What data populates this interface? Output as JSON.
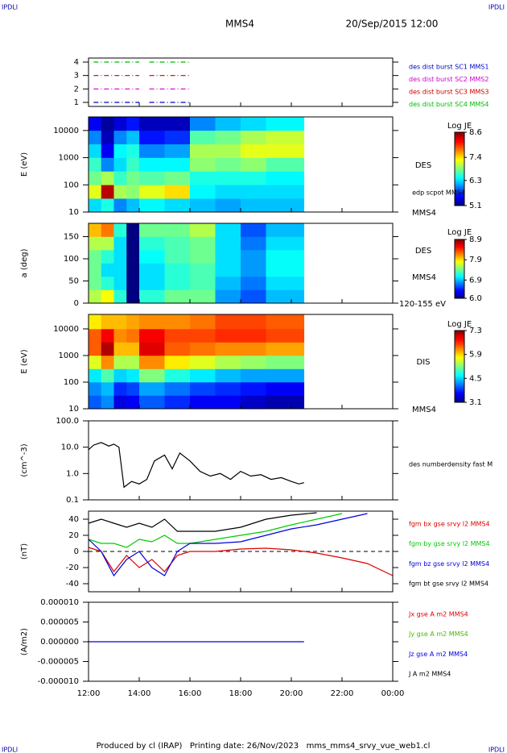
{
  "header": {
    "corner_left": "IPDLI",
    "corner_right": "IPDLI",
    "spacecraft": "MMS4",
    "date": "20/Sep/2015 12:00"
  },
  "footer": {
    "text": "Produced by cl (IRAP)   Printing date: 26/Nov/2023   mms_mms4_srvy_vue_web1.cl",
    "corner_left": "IPDLI",
    "corner_right": "IPDLI"
  },
  "time_axis": {
    "xlim": [
      12,
      24
    ],
    "xticks": [
      {
        "value": 12,
        "label": "12:00"
      },
      {
        "value": 14,
        "label": "14:00"
      },
      {
        "value": 16,
        "label": "16:00"
      },
      {
        "value": 18,
        "label": "18:00"
      },
      {
        "value": 20,
        "label": "20:00"
      },
      {
        "value": 22,
        "label": "22:00"
      },
      {
        "value": 24,
        "label": "00:00"
      }
    ]
  },
  "chart_data": [
    {
      "type": "line",
      "ylim": [
        0.7,
        4.3
      ],
      "yticks": [
        1,
        2,
        3,
        4
      ],
      "dash": true,
      "x": [
        12.2,
        14.0,
        14.2,
        14.4,
        16.0
      ],
      "series": [
        {
          "name": "des dist burst SC1 MMS1",
          "color": "#0000cc",
          "values": [
            1,
            1,
            null,
            1,
            1
          ]
        },
        {
          "name": "des dist burst SC2 MMS2",
          "color": "#cc00cc",
          "values": [
            2,
            2,
            null,
            2,
            2
          ]
        },
        {
          "name": "des dist burst SC3 MMS3",
          "color": "#cc0000",
          "values": [
            3,
            3,
            null,
            3,
            3
          ]
        },
        {
          "name": "des dist burst SC4 MMS4",
          "color": "#00bb00",
          "values": [
            4,
            4,
            null,
            4,
            4
          ]
        }
      ]
    },
    {
      "type": "heatmap",
      "ylabel": "E (eV)",
      "log": true,
      "ylim": [
        10,
        31623
      ],
      "yticks": [
        10,
        100,
        1000,
        10000
      ],
      "x_edges": [
        12,
        12.5,
        13,
        13.5,
        14,
        15,
        16,
        17,
        18,
        19,
        20.5
      ],
      "y_edges": [
        10,
        31.6,
        100,
        316,
        1000,
        3162,
        10000,
        31623
      ],
      "z": [
        [
          6.3,
          7.2,
          6.8,
          6.6,
          6.3,
          6.0,
          5.5
        ],
        [
          6.5,
          8.4,
          7.0,
          6.0,
          5.5,
          5.3,
          5.2
        ],
        [
          6.0,
          7.0,
          6.6,
          6.3,
          6.4,
          6.0,
          5.4
        ],
        [
          6.2,
          6.9,
          6.8,
          6.6,
          6.5,
          6.2,
          5.6
        ],
        [
          6.4,
          7.2,
          6.7,
          6.4,
          6.0,
          5.6,
          5.3
        ],
        [
          6.3,
          7.4,
          6.8,
          6.4,
          6.1,
          5.7,
          5.3
        ],
        [
          6.2,
          6.4,
          6.5,
          6.9,
          7.0,
          6.7,
          6.0
        ],
        [
          6.1,
          6.3,
          6.5,
          6.8,
          7.0,
          6.8,
          6.2
        ],
        [
          6.2,
          6.3,
          6.5,
          6.9,
          7.2,
          7.0,
          6.3
        ],
        [
          6.2,
          6.3,
          6.4,
          6.7,
          7.2,
          7.1,
          6.4
        ]
      ],
      "clim": [
        5.1,
        8.6
      ],
      "colorbar_label": "Log JE",
      "colorbar_ticks": [
        8.6,
        7.4,
        6.3,
        5.1
      ],
      "annotations": [
        "DES",
        "edp scpot MMS4",
        "MMS4"
      ]
    },
    {
      "type": "heatmap",
      "ylabel": "a (deg)",
      "log": false,
      "ylim": [
        0,
        180
      ],
      "yticks": [
        0,
        50,
        100,
        150
      ],
      "x_edges": [
        12,
        12.5,
        13,
        13.5,
        14,
        15,
        16,
        17,
        18,
        19,
        20.5
      ],
      "y_edges": [
        0,
        30,
        60,
        90,
        120,
        150,
        180
      ],
      "z": [
        [
          7.6,
          7.4,
          7.4,
          7.4,
          7.6,
          8.0
        ],
        [
          7.8,
          7.2,
          7.0,
          7.2,
          7.6,
          8.2
        ],
        [
          7.2,
          7.0,
          7.0,
          7.0,
          7.0,
          7.2
        ],
        [
          6.0,
          6.0,
          6.0,
          6.0,
          6.0,
          6.0
        ],
        [
          7.2,
          7.0,
          7.0,
          7.1,
          7.2,
          7.4
        ],
        [
          7.4,
          7.2,
          7.2,
          7.3,
          7.3,
          7.4
        ],
        [
          7.4,
          7.3,
          7.3,
          7.4,
          7.4,
          7.6
        ],
        [
          6.8,
          6.9,
          7.0,
          7.0,
          7.0,
          7.0
        ],
        [
          6.6,
          6.7,
          6.8,
          6.8,
          6.7,
          6.6
        ],
        [
          6.9,
          7.0,
          7.1,
          7.1,
          7.0,
          6.9
        ]
      ],
      "clim": [
        6.0,
        8.9
      ],
      "colorbar_label": "Log JE",
      "colorbar_ticks": [
        8.9,
        7.9,
        6.9,
        {
          "value": 6.0,
          "label": "6.0"
        }
      ],
      "annotations": [
        "DES",
        "MMS4",
        "120-155 eV"
      ]
    },
    {
      "type": "heatmap",
      "ylabel": "E (eV)",
      "log": true,
      "ylim": [
        10,
        35000
      ],
      "yticks": [
        10,
        100,
        1000,
        10000
      ],
      "x_edges": [
        12,
        12.5,
        13,
        13.5,
        14,
        15,
        16,
        17,
        18,
        19,
        20.5
      ],
      "y_edges": [
        10,
        31.6,
        100,
        316,
        1000,
        3162,
        10000,
        35000
      ],
      "z": [
        [
          4.0,
          4.2,
          4.6,
          5.6,
          6.4,
          6.4,
          5.8
        ],
        [
          4.2,
          4.4,
          5.0,
          6.2,
          7.1,
          6.8,
          6.0
        ],
        [
          3.5,
          3.8,
          4.5,
          5.4,
          6.0,
          6.2,
          6.0
        ],
        [
          3.6,
          3.9,
          4.6,
          5.4,
          6.0,
          6.3,
          6.1
        ],
        [
          4.0,
          4.3,
          5.2,
          6.2,
          6.9,
          6.8,
          6.2
        ],
        [
          3.8,
          4.1,
          4.8,
          5.8,
          6.4,
          6.5,
          6.2
        ],
        [
          3.6,
          3.9,
          4.6,
          5.6,
          6.3,
          6.5,
          6.3
        ],
        [
          3.6,
          3.8,
          4.4,
          5.4,
          6.2,
          6.6,
          6.5
        ],
        [
          3.4,
          3.7,
          4.3,
          5.3,
          6.2,
          6.6,
          6.5
        ],
        [
          3.3,
          3.6,
          4.3,
          5.2,
          6.1,
          6.5,
          6.4
        ]
      ],
      "clim": [
        3.1,
        7.3
      ],
      "colorbar_label": "Log JE",
      "colorbar_ticks": [
        7.3,
        5.9,
        4.5,
        3.1
      ],
      "annotations": [
        "DIS",
        "MMS4"
      ]
    },
    {
      "type": "line",
      "ylabel": "(cm^-3)",
      "log": true,
      "ylim": [
        0.1,
        100
      ],
      "yticks": [
        {
          "value": 100,
          "label": "100.0"
        },
        {
          "value": 10,
          "label": "10.0"
        },
        {
          "value": 1,
          "label": "1.0"
        },
        0.1
      ],
      "x": [
        12,
        12.2,
        12.5,
        12.8,
        13,
        13.2,
        13.4,
        13.7,
        14,
        14.3,
        14.6,
        15,
        15.3,
        15.6,
        16,
        16.4,
        16.8,
        17.2,
        17.6,
        18,
        18.4,
        18.8,
        19.2,
        19.6,
        20,
        20.3,
        20.5
      ],
      "series": [
        {
          "name": "des numberdensity fast M",
          "color": "#000000",
          "values": [
            8,
            12,
            15,
            11,
            13,
            10,
            0.3,
            0.5,
            0.4,
            0.6,
            3,
            5,
            1.5,
            6,
            3,
            1.2,
            0.8,
            1.0,
            0.6,
            1.2,
            0.8,
            0.9,
            0.6,
            0.7,
            0.5,
            0.4,
            0.45
          ]
        }
      ]
    },
    {
      "type": "line",
      "ylabel": "(nT)",
      "log": false,
      "ylim": [
        -50,
        50
      ],
      "yticks": [
        -40,
        -20,
        0,
        20,
        40
      ],
      "zero_line": true,
      "x": [
        12,
        12.5,
        13,
        13.5,
        14,
        14.5,
        15,
        15.5,
        16,
        17,
        18,
        19,
        20,
        21,
        22,
        23,
        24
      ],
      "series": [
        {
          "name": "fgm bx gse srvy l2 MMS4",
          "color": "#dd0000",
          "values": [
            5,
            0,
            -25,
            -5,
            -20,
            -10,
            -25,
            -5,
            0,
            0,
            3,
            4,
            2,
            -2,
            -8,
            -15,
            -30
          ]
        },
        {
          "name": "fgm by gse srvy l2 MMS4",
          "color": "#00cc00",
          "values": [
            15,
            10,
            10,
            5,
            15,
            12,
            20,
            10,
            10,
            15,
            20,
            25,
            33,
            40,
            47,
            null,
            null
          ]
        },
        {
          "name": "fgm bz gse srvy l2 MMS4",
          "color": "#0000dd",
          "values": [
            15,
            0,
            -30,
            -10,
            0,
            -20,
            -30,
            0,
            10,
            10,
            12,
            20,
            28,
            33,
            40,
            47,
            null
          ]
        },
        {
          "name": "fgm bt gse srvy l2 MMS4",
          "color": "#000000",
          "values": [
            35,
            40,
            35,
            30,
            35,
            30,
            40,
            25,
            25,
            25,
            30,
            40,
            45,
            48,
            null,
            null,
            null
          ]
        }
      ]
    },
    {
      "type": "line",
      "ylabel": "(A/m2)",
      "log": false,
      "ylim": [
        -1e-05,
        1e-05
      ],
      "yticks": [
        {
          "value": 1e-05,
          "label": "0.000010"
        },
        {
          "value": 5e-06,
          "label": "0.000005"
        },
        {
          "value": 0,
          "label": "0.000000"
        },
        {
          "value": -5e-06,
          "label": "-0.000005"
        },
        {
          "value": -1e-05,
          "label": "-0.000010"
        }
      ],
      "x": [
        12,
        16,
        20.5
      ],
      "series": [
        {
          "name": "Jx gse A m2 MMS4",
          "color": "#dd0000",
          "values": [
            null,
            null,
            null
          ]
        },
        {
          "name": "Jy gse A m2 MMS4",
          "color": "#44bb00",
          "values": [
            null,
            null,
            null
          ]
        },
        {
          "name": "Jz gse A m2 MMS4",
          "color": "#0000dd",
          "values": [
            0,
            0,
            0
          ]
        },
        {
          "name": "J A m2 MMS4",
          "color": "#000000",
          "values": [
            null,
            null,
            null
          ]
        }
      ]
    }
  ]
}
